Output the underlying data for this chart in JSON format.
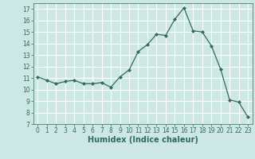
{
  "x": [
    0,
    1,
    2,
    3,
    4,
    5,
    6,
    7,
    8,
    9,
    10,
    11,
    12,
    13,
    14,
    15,
    16,
    17,
    18,
    19,
    20,
    21,
    22,
    23
  ],
  "y": [
    11.1,
    10.8,
    10.5,
    10.7,
    10.8,
    10.5,
    10.5,
    10.6,
    10.2,
    11.1,
    11.7,
    13.3,
    13.9,
    14.8,
    14.7,
    16.1,
    17.1,
    15.1,
    15.0,
    13.8,
    11.8,
    9.1,
    8.9,
    7.6
  ],
  "line_color": "#2e6b5e",
  "marker": "D",
  "marker_size": 2,
  "xlabel": "Humidex (Indice chaleur)",
  "xlim": [
    -0.5,
    23.5
  ],
  "ylim": [
    7,
    17.5
  ],
  "yticks": [
    7,
    8,
    9,
    10,
    11,
    12,
    13,
    14,
    15,
    16,
    17
  ],
  "xticks": [
    0,
    1,
    2,
    3,
    4,
    5,
    6,
    7,
    8,
    9,
    10,
    11,
    12,
    13,
    14,
    15,
    16,
    17,
    18,
    19,
    20,
    21,
    22,
    23
  ],
  "bg_color": "#cde8e4",
  "grid_color": "#ffffff",
  "tick_fontsize": 5.5,
  "xlabel_fontsize": 7.0,
  "linewidth": 0.9
}
